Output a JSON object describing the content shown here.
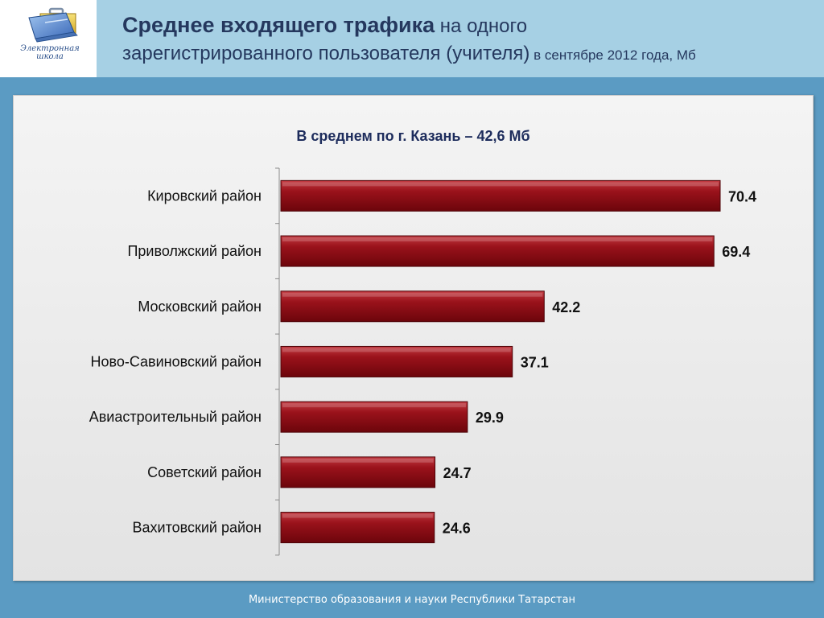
{
  "header": {
    "title_bold": "Среднее входящего трафика",
    "title_rest_1": " на одного",
    "title_line2": "зарегистрированного пользователя (учителя)",
    "title_small": " в сентябре 2012 года, Мб"
  },
  "logo": {
    "icon": "briefcase-laptop-icon",
    "line1": "Электронная",
    "line2": "школа"
  },
  "footer": {
    "text": "Министерство образования и науки  Республики Татарстан"
  },
  "colors": {
    "bar": "#8e0a12",
    "bar_edge": "#4d0408",
    "header_bg": "#a6d0e4",
    "page_bg": "#5b9bc3"
  },
  "chart_data": {
    "type": "bar",
    "orientation": "horizontal",
    "title": "В среднем по г. Казань – 42,6 Мб",
    "categories": [
      "Кировский район",
      "Приволжский район",
      "Московский район",
      "Ново-Савиновский район",
      "Авиастроительный район",
      "Советский район",
      "Вахитовский район"
    ],
    "values": [
      70.4,
      69.4,
      42.2,
      37.1,
      29.9,
      24.7,
      24.6
    ],
    "value_labels": [
      "70.4",
      "69.4",
      "42.2",
      "37.1",
      "29.9",
      "24.7",
      "24.6"
    ],
    "xlim": [
      0,
      70.4
    ],
    "grid": false,
    "legend": "none"
  }
}
